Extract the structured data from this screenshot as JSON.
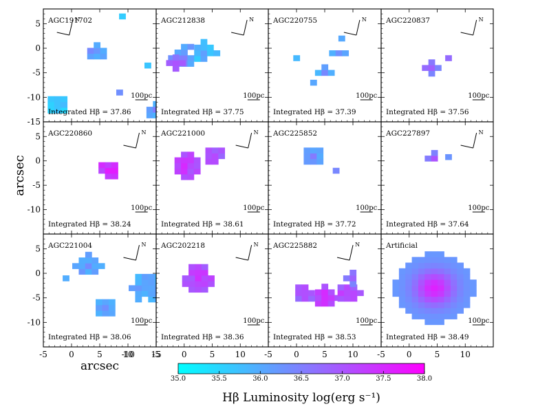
{
  "chart_data": {
    "type": "heatmap",
    "ylabel": "arcsec",
    "xlabel": "arcsec",
    "colorbar": {
      "label": "Hβ Luminosity log(erg s⁻¹)",
      "range": [
        35.0,
        38.0
      ],
      "ticks": [
        "35.0",
        "35.5",
        "36.0",
        "36.5",
        "37.0",
        "37.5",
        "38.0"
      ],
      "colors": [
        "#00ffff",
        "#ff00ff"
      ]
    },
    "x_ticks": [
      "-5",
      "0",
      "5",
      "10"
    ],
    "x_ticks_first": [
      "-5",
      "0",
      "5",
      "10",
      "15"
    ],
    "x_ticks_extra": "-10",
    "y_ticks": [
      "5",
      "0",
      "-5",
      "-10"
    ],
    "y_ticks_first": [
      "5",
      "0",
      "-5",
      "-10",
      "-15"
    ],
    "x_range": [
      -5,
      15
    ],
    "y_range": [
      -15,
      8
    ],
    "scale_bar_label": "100pc",
    "compass_label": "N",
    "integrated_prefix": "Integrated Hβ = ",
    "panels": [
      {
        "name": "AGC191702",
        "integrated": "37.86",
        "compass": true,
        "cx": 0.23,
        "blobs": [
          {
            "x": 4.5,
            "y": -0.5,
            "r": 2.2,
            "lum": 35.9
          },
          {
            "x": -2.5,
            "y": -11.5,
            "r": 1.8,
            "lum": 35.4
          },
          {
            "x": 15,
            "y": -12.5,
            "r": 2.2,
            "lum": 35.8
          },
          {
            "x": 8.5,
            "y": -9,
            "r": 1.0,
            "lum": 35.6
          },
          {
            "x": 9,
            "y": 6.5,
            "r": 1.1,
            "lum": 35.3
          },
          {
            "x": 13.5,
            "y": -3.5,
            "r": 0.6,
            "lum": 35.4
          }
        ]
      },
      {
        "name": "AGC212838",
        "integrated": "37.75",
        "compass": true,
        "cx": 0.78,
        "blobs": [
          {
            "x": 0,
            "y": -2,
            "r": 2.7,
            "lum": 36.0
          },
          {
            "x": 3.5,
            "y": -1,
            "r": 2.3,
            "lum": 35.6
          },
          {
            "x": -1.5,
            "y": -3,
            "r": 1.6,
            "lum": 36.6
          }
        ]
      },
      {
        "name": "AGC220755",
        "integrated": "37.39",
        "compass": true,
        "cx": 0.78,
        "blobs": [
          {
            "x": 5,
            "y": -5,
            "r": 1.4,
            "lum": 35.8
          },
          {
            "x": 7.5,
            "y": -1,
            "r": 1.2,
            "lum": 35.8
          },
          {
            "x": 8,
            "y": 2,
            "r": 1.0,
            "lum": 35.7
          },
          {
            "x": 3,
            "y": -7,
            "r": 0.8,
            "lum": 35.5
          },
          {
            "x": 0,
            "y": -2,
            "r": 0.5,
            "lum": 35.5
          }
        ]
      },
      {
        "name": "AGC220837",
        "integrated": "37.56",
        "compass": true,
        "cx": 0.82,
        "blobs": [
          {
            "x": 4,
            "y": -4,
            "r": 1.5,
            "lum": 36.4
          },
          {
            "x": 7,
            "y": -2,
            "r": 1.0,
            "lum": 36.1
          }
        ]
      },
      {
        "name": "AGC220860",
        "integrated": "38.24",
        "compass": true,
        "cx": 0.82,
        "blobs": [
          {
            "x": 6.5,
            "y": -2,
            "r": 2.0,
            "lum": 37.2
          }
        ]
      },
      {
        "name": "AGC221000",
        "integrated": "38.61",
        "compass": true,
        "cx": 0.82,
        "blobs": [
          {
            "x": 0,
            "y": -1,
            "r": 2.6,
            "lum": 37.0
          },
          {
            "x": 5.5,
            "y": 1,
            "r": 2.0,
            "lum": 36.8
          }
        ]
      },
      {
        "name": "AGC225852",
        "integrated": "37.72",
        "compass": false,
        "cx": 0.82,
        "blobs": [
          {
            "x": 3,
            "y": 1,
            "r": 1.8,
            "lum": 35.9
          },
          {
            "x": 7,
            "y": -2,
            "r": 1.0,
            "lum": 36.0
          }
        ]
      },
      {
        "name": "AGC227897",
        "integrated": "37.64",
        "compass": true,
        "cx": 0.82,
        "blobs": [
          {
            "x": 4.5,
            "y": 0.5,
            "r": 1.5,
            "lum": 36.3
          },
          {
            "x": 7,
            "y": 0.8,
            "r": 0.7,
            "lum": 36.0
          }
        ]
      },
      {
        "name": "AGC221004",
        "integrated": "38.06",
        "compass": true,
        "cx": 0.82,
        "blobs": [
          {
            "x": 3,
            "y": 1.5,
            "r": 2.4,
            "lum": 35.9
          },
          {
            "x": 13,
            "y": -3,
            "r": 3.4,
            "lum": 35.8
          },
          {
            "x": 6,
            "y": -7,
            "r": 2.0,
            "lum": 35.8
          },
          {
            "x": -1,
            "y": -1,
            "r": 0.8,
            "lum": 35.6
          }
        ]
      },
      {
        "name": "AGC202218",
        "integrated": "38.36",
        "compass": true,
        "cx": 0.82,
        "blobs": [
          {
            "x": 2.5,
            "y": -1,
            "r": 3.0,
            "lum": 36.9
          }
        ]
      },
      {
        "name": "AGC225882",
        "integrated": "38.53",
        "compass": true,
        "cx": 0.72,
        "blobs": [
          {
            "x": 5,
            "y": -5,
            "r": 2.4,
            "lum": 37.0
          },
          {
            "x": 9,
            "y": -4,
            "r": 2.5,
            "lum": 36.8
          },
          {
            "x": 1.5,
            "y": -4,
            "r": 2.0,
            "lum": 36.7
          },
          {
            "x": 10,
            "y": -1,
            "r": 1.2,
            "lum": 36.4
          }
        ]
      },
      {
        "name": "Artificial",
        "integrated": "38.49",
        "compass": false,
        "cx": 0.82,
        "blobs": [
          {
            "x": 4.5,
            "y": -3,
            "r": 7.0,
            "lum": 36.2,
            "gauss": true,
            "peak": 37.6
          }
        ]
      }
    ]
  }
}
